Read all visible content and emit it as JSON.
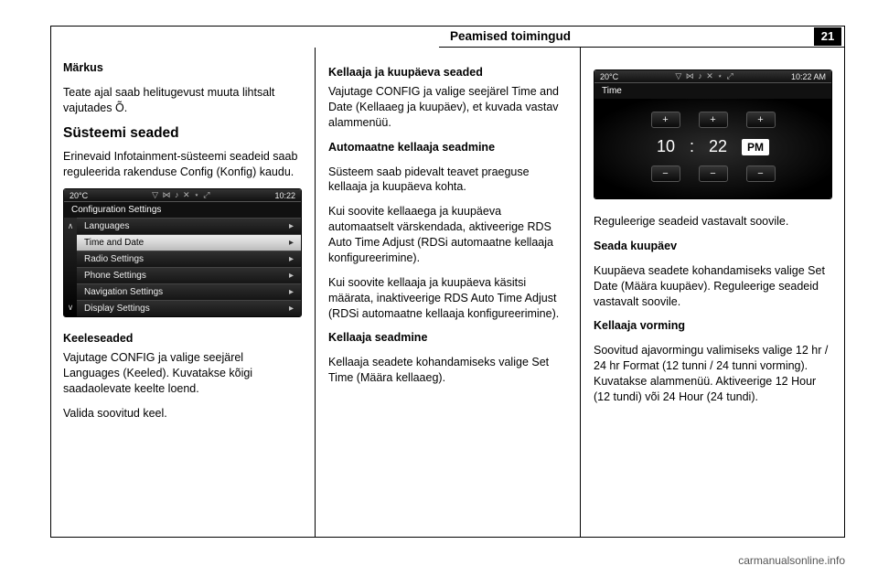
{
  "header": {
    "title": "Peamised toimingud",
    "page": "21"
  },
  "col1": {
    "note_head": "Märkus",
    "note_body": "Teate ajal saab helitugevust muuta lihtsalt vajutades Õ.",
    "sys_title": "Süsteemi seaded",
    "sys_intro": "Erinevaid Infotainment-süsteemi seadeid saab reguleerida rakenduse Config (Konfig) kaudu.",
    "lang_head": "Keeleseaded",
    "lang_p1": "Vajutage CONFIG ja valige seejärel Languages (Keeled). Kuvatakse kõigi saadaolevate keelte loend.",
    "lang_p2": "Valida soovitud keel.",
    "screen1": {
      "temp": "20°C",
      "clock": "10:22",
      "sigicons": "▽ ⋈ ♪ ✕ ⋆ ⤢",
      "title": "Configuration Settings",
      "up": "∧",
      "down": "∨",
      "items": [
        {
          "label": "Languages",
          "hl": false
        },
        {
          "label": "Time and Date",
          "hl": true
        },
        {
          "label": "Radio Settings",
          "hl": false
        },
        {
          "label": "Phone Settings",
          "hl": false
        },
        {
          "label": "Navigation Settings",
          "hl": false
        },
        {
          "label": "Display Settings",
          "hl": false
        }
      ],
      "chev": "▸"
    }
  },
  "col2": {
    "h": "Kellaaja ja kuupäeva seaded",
    "p1": "Vajutage CONFIG ja valige seejärel Time and Date (Kellaaeg ja kuupäev), et kuvada vastav alammenüü.",
    "h_auto": "Automaatne kellaaja seadmine",
    "p_auto1": "Süsteem saab pidevalt teavet praeguse kellaaja ja kuupäeva kohta.",
    "p_auto2": "Kui soovite kellaaega ja kuupäeva automaatselt värskendada, aktiveerige RDS Auto Time Adjust (RDSi automaatne kellaaja konfigureerimine).",
    "p_auto3": "Kui soovite kellaaja ja kuupäeva käsitsi määrata, inaktiveerige RDS Auto Time Adjust (RDSi automaatne kellaaja konfigureerimine).",
    "h_time": "Kellaaja seadmine",
    "p_time": "Kellaaja seadete kohandamiseks valige Set Time (Määra kellaaeg)."
  },
  "col3": {
    "p1": "Reguleerige seadeid vastavalt soovile.",
    "h_date": "Seada kuupäev",
    "p_date": "Kuupäeva seadete kohandamiseks valige Set Date (Määra kuupäev). Reguleerige seadeid vastavalt soovile.",
    "h_fmt": "Kellaaja vorming",
    "p_fmt": "Soovitud ajavormingu valimiseks valige 12 hr / 24 hr Format (12 tunni / 24 tunni vorming). Kuvatakse alammenüü. Aktiveerige 12 Hour (12 tundi) või 24 Hour (24 tundi).",
    "screen2": {
      "temp": "20°C",
      "clock": "10:22 AM",
      "sigicons": "▽ ⋈ ♪ ✕ ⋆ ⤢",
      "title": "Time",
      "plus": "+",
      "minus": "−",
      "h": "10",
      "m": "22",
      "ampm": "PM",
      "colon": ":"
    }
  },
  "footer": {
    "url": "carmanualsonline.info"
  }
}
